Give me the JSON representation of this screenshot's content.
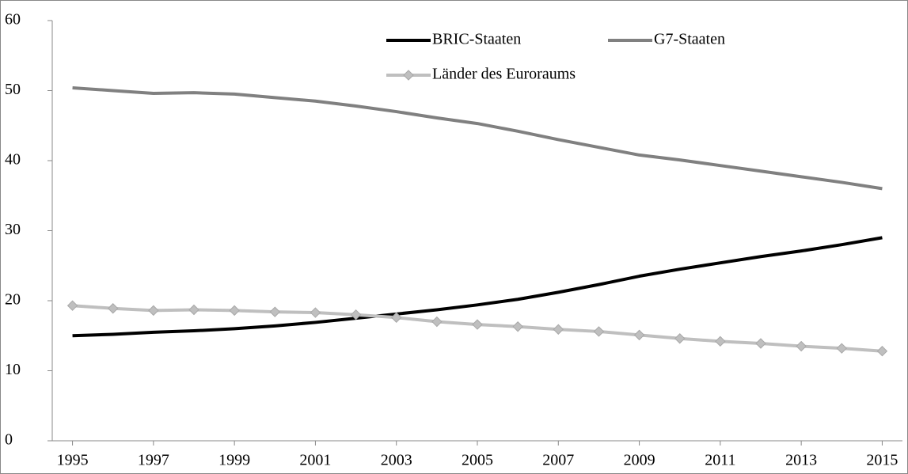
{
  "chart_data": {
    "type": "line",
    "x": [
      1995,
      1996,
      1997,
      1998,
      1999,
      2000,
      2001,
      2002,
      2003,
      2004,
      2005,
      2006,
      2007,
      2008,
      2009,
      2010,
      2011,
      2012,
      2013,
      2014,
      2015
    ],
    "series": [
      {
        "name": "BRIC-Staaten",
        "color": "#000000",
        "marker": false,
        "values": [
          15.0,
          15.2,
          15.5,
          15.7,
          16.0,
          16.4,
          16.9,
          17.5,
          18.1,
          18.7,
          19.4,
          20.2,
          21.2,
          22.3,
          23.5,
          24.5,
          25.4,
          26.3,
          27.1,
          28.0,
          29.0
        ]
      },
      {
        "name": "G7-Staaten",
        "color": "#808080",
        "marker": false,
        "values": [
          50.4,
          50.0,
          49.6,
          49.7,
          49.5,
          49.0,
          48.5,
          47.8,
          47.0,
          46.1,
          45.3,
          44.2,
          43.0,
          41.9,
          40.8,
          40.1,
          39.3,
          38.5,
          37.7,
          36.9,
          36.0
        ]
      },
      {
        "name": "Länder des Euroraums",
        "color": "#bfbfbf",
        "marker": true,
        "values": [
          19.3,
          18.9,
          18.6,
          18.7,
          18.6,
          18.4,
          18.3,
          18.0,
          17.6,
          17.0,
          16.6,
          16.3,
          15.9,
          15.6,
          15.1,
          14.6,
          14.2,
          13.9,
          13.5,
          13.2,
          12.8
        ]
      }
    ],
    "xlim": [
      1994.5,
      2015.5
    ],
    "xticks": [
      1995,
      1997,
      1999,
      2001,
      2003,
      2005,
      2007,
      2009,
      2011,
      2013,
      2015
    ],
    "ylim": [
      0,
      60
    ],
    "yticks": [
      0,
      10,
      20,
      30,
      40,
      50,
      60
    ],
    "grid": false
  }
}
